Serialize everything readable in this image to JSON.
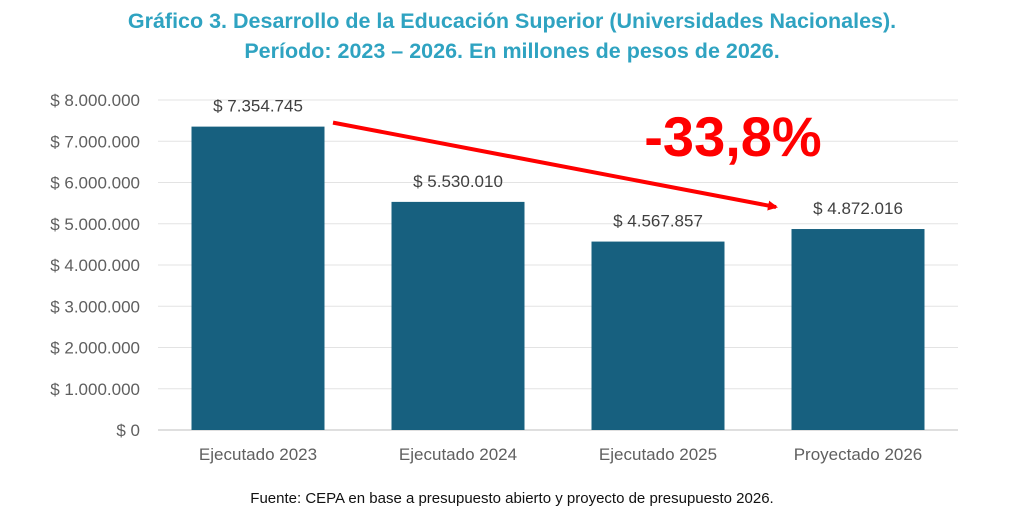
{
  "title_line1": "Gráfico 3. Desarrollo de la Educación Superior (Universidades Nacionales).",
  "title_line2": "Período: 2023 – 2026. En millones de pesos de 2026.",
  "source": "Fuente: CEPA en base a presupuesto abierto y proyecto de presupuesto 2026.",
  "annotation": "-33,8%",
  "colors": {
    "bar": "#17607f",
    "title": "#2fa3c1",
    "arrow": "#ff0000",
    "annotation": "#ff0000"
  },
  "chart_data": {
    "type": "bar",
    "categories": [
      "Ejecutado 2023",
      "Ejecutado 2024",
      "Ejecutado 2025",
      "Proyectado 2026"
    ],
    "values": [
      7354745,
      5530010,
      4567857,
      4872016
    ],
    "value_labels": [
      "$ 7.354.745",
      "$ 5.530.010",
      "$ 4.567.857",
      "$ 4.872.016"
    ],
    "ylim": [
      0,
      8000000
    ],
    "yticks": [
      0,
      1000000,
      2000000,
      3000000,
      4000000,
      5000000,
      6000000,
      7000000,
      8000000
    ],
    "ytick_labels": [
      "$ 0",
      "$ 1.000.000",
      "$ 2.000.000",
      "$ 3.000.000",
      "$ 4.000.000",
      "$ 5.000.000",
      "$ 6.000.000",
      "$ 7.000.000",
      "$ 8.000.000"
    ],
    "grid": true,
    "legend": "none",
    "annotation_arrow": {
      "from_category": 0,
      "to_category": 3,
      "label": "-33,8%"
    }
  }
}
